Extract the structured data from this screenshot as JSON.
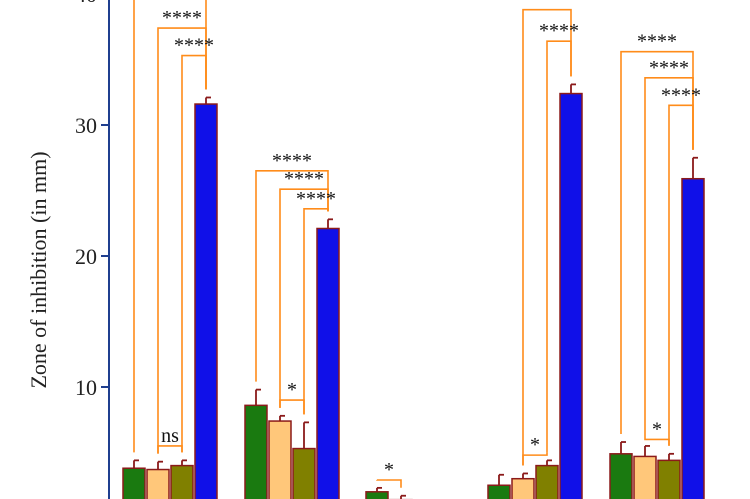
{
  "chart_data": {
    "type": "bar",
    "ylabel": "Zone of inhibition (in mm)",
    "ylim": [
      0,
      40
    ],
    "yticks": [
      10,
      20,
      30,
      40
    ],
    "grid": false,
    "series_colors": [
      "#1a7a10",
      "#ffc77a",
      "#808000",
      "#1010e8"
    ],
    "groups": [
      {
        "values": [
          3.8,
          3.7,
          4.0,
          31.6
        ],
        "errors": [
          0.6,
          0.6,
          0.4,
          0.5
        ],
        "comparisons": [
          {
            "from": 0,
            "to": 3,
            "y": 40.5,
            "label": ""
          },
          {
            "from": 1,
            "to": 3,
            "y": 37.4,
            "label": "****"
          },
          {
            "from": 2,
            "to": 3,
            "y": 35.3,
            "label": "****"
          },
          {
            "from": 1,
            "to": 2,
            "y": 5.5,
            "label": "ns"
          }
        ]
      },
      {
        "values": [
          8.6,
          7.4,
          5.3,
          22.1
        ],
        "errors": [
          1.2,
          0.4,
          2.0,
          0.7
        ],
        "comparisons": [
          {
            "from": 0,
            "to": 3,
            "y": 26.5,
            "label": "****"
          },
          {
            "from": 1,
            "to": 3,
            "y": 25.1,
            "label": "****"
          },
          {
            "from": 2,
            "to": 3,
            "y": 23.6,
            "label": "****"
          },
          {
            "from": 1,
            "to": 2,
            "y": 9.0,
            "label": "*"
          }
        ]
      },
      {
        "values": [
          2.0,
          1.4
        ],
        "errors": [
          0.3,
          0.3
        ],
        "comparisons": [
          {
            "from": 0,
            "to": 1,
            "y": 2.9,
            "label": "*"
          }
        ]
      },
      {
        "values": [
          2.5,
          3.0,
          4.0,
          32.4
        ],
        "errors": [
          0.8,
          0.4,
          0.4,
          0.7
        ],
        "comparisons": [
          {
            "from": 1,
            "to": 3,
            "y": 38.8,
            "label": "****"
          },
          {
            "from": 2,
            "to": 3,
            "y": 36.4,
            "label": "****"
          },
          {
            "from": 1,
            "to": 2,
            "y": 4.8,
            "label": "*"
          }
        ]
      },
      {
        "values": [
          4.9,
          4.7,
          4.4,
          25.9
        ],
        "errors": [
          0.9,
          0.8,
          0.5,
          1.6
        ],
        "comparisons": [
          {
            "from": 0,
            "to": 3,
            "y": 35.6,
            "label": "****"
          },
          {
            "from": 1,
            "to": 3,
            "y": 33.6,
            "label": "****"
          },
          {
            "from": 2,
            "to": 3,
            "y": 31.5,
            "label": "****"
          },
          {
            "from": 1,
            "to": 2,
            "y": 6.0,
            "label": "*"
          }
        ]
      }
    ]
  }
}
